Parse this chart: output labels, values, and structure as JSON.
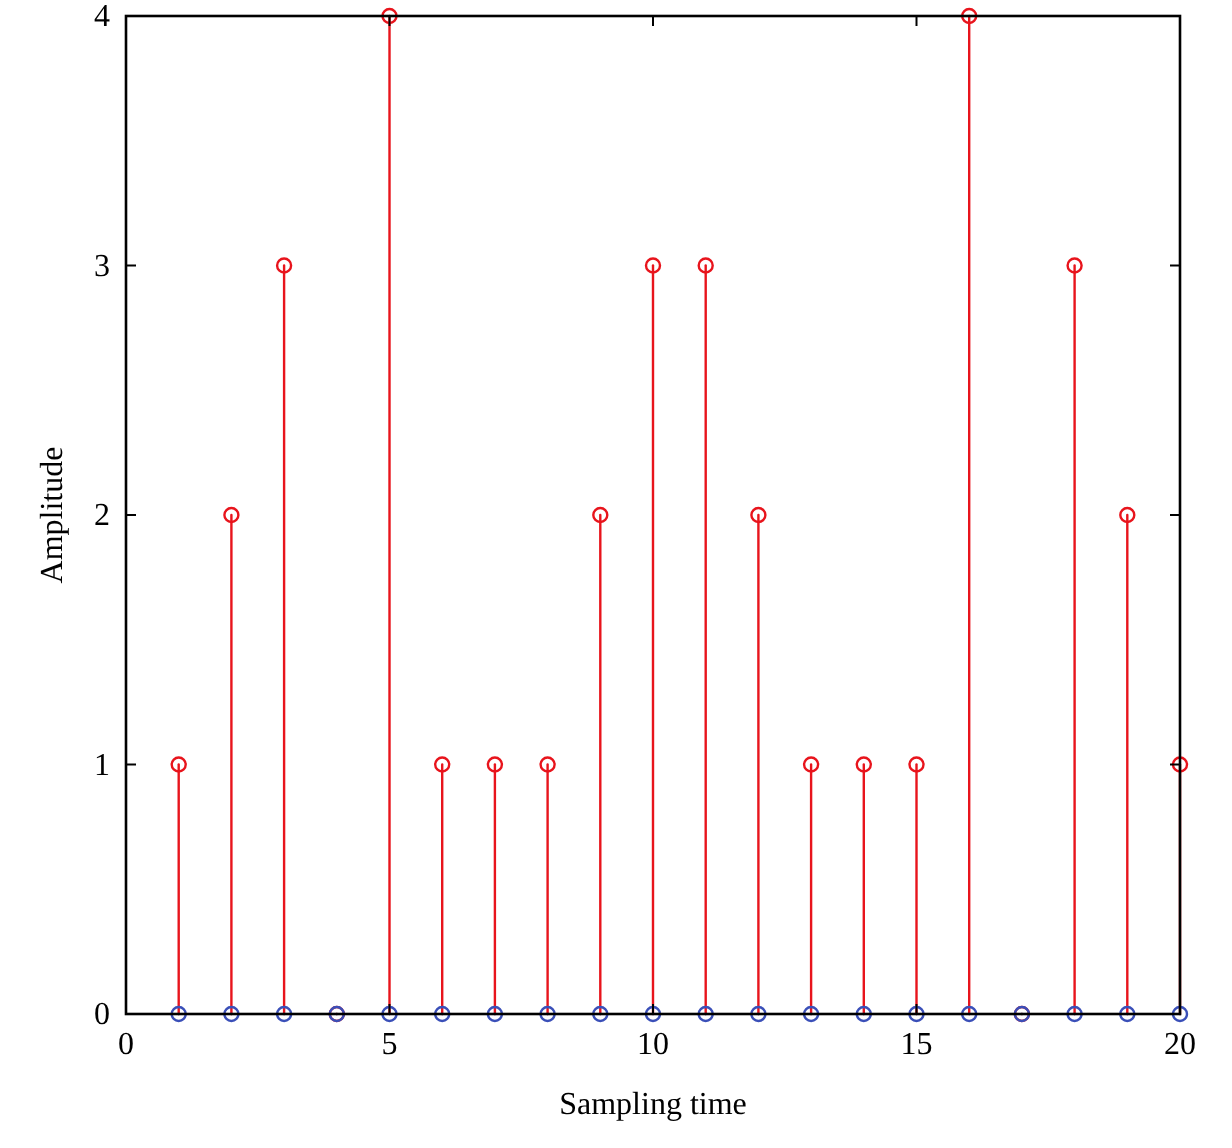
{
  "chart_data": {
    "type": "lollipop",
    "xlabel": "Sampling time",
    "ylabel": "Amplitude",
    "x": [
      1,
      2,
      3,
      4,
      5,
      6,
      7,
      8,
      9,
      10,
      11,
      12,
      13,
      14,
      15,
      16,
      17,
      18,
      19,
      20
    ],
    "series": [
      {
        "color": "#e8141c",
        "values": [
          1,
          2,
          3,
          0,
          4,
          1,
          1,
          1,
          2,
          3,
          3,
          2,
          1,
          1,
          1,
          4,
          0,
          3,
          2,
          1
        ]
      },
      {
        "color": "#3a4fb8",
        "values": [
          0,
          0,
          0,
          0,
          0,
          0,
          0,
          0,
          0,
          0,
          0,
          0,
          0,
          0,
          0,
          0,
          0,
          0,
          0,
          0
        ]
      }
    ],
    "xlim": [
      0,
      20
    ],
    "xticks": [
      0,
      5,
      10,
      15,
      20
    ],
    "ylim": [
      0,
      4
    ],
    "yticks": [
      0,
      1,
      2,
      3,
      4
    ],
    "marker": "circle",
    "line_style": "solid"
  }
}
